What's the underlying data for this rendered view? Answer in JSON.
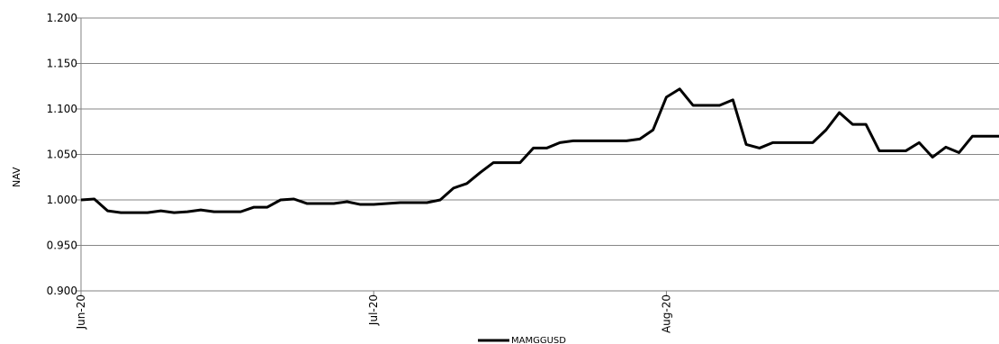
{
  "chart_data": {
    "type": "line",
    "title": "",
    "xlabel": "",
    "ylabel": "NAV",
    "ylim": [
      0.9,
      1.2
    ],
    "yticks": [
      "0.900",
      "0.950",
      "1.000",
      "1.050",
      "1.100",
      "1.150",
      "1.200"
    ],
    "xticks": [
      {
        "label": "Jun-20",
        "index": 0
      },
      {
        "label": "Jul-20",
        "index": 22
      },
      {
        "label": "Aug-20",
        "index": 44
      }
    ],
    "grid": "horizontal",
    "legend": "bottom",
    "series": [
      {
        "name": "MAMGGUSD",
        "color": "#000000",
        "values": [
          1.0,
          1.001,
          0.988,
          0.986,
          0.986,
          0.986,
          0.988,
          0.986,
          0.987,
          0.989,
          0.987,
          0.987,
          0.987,
          0.992,
          0.992,
          1.0,
          1.001,
          0.996,
          0.996,
          0.996,
          0.998,
          0.995,
          0.995,
          0.996,
          0.997,
          0.997,
          0.997,
          1.0,
          1.013,
          1.018,
          1.03,
          1.041,
          1.041,
          1.041,
          1.057,
          1.057,
          1.063,
          1.065,
          1.065,
          1.065,
          1.065,
          1.065,
          1.067,
          1.077,
          1.113,
          1.122,
          1.104,
          1.104,
          1.104,
          1.11,
          1.061,
          1.057,
          1.063,
          1.063,
          1.063,
          1.063,
          1.077,
          1.096,
          1.083,
          1.083,
          1.054,
          1.054,
          1.054,
          1.063,
          1.047,
          1.058,
          1.052,
          1.07,
          1.07,
          1.07
        ]
      }
    ]
  }
}
